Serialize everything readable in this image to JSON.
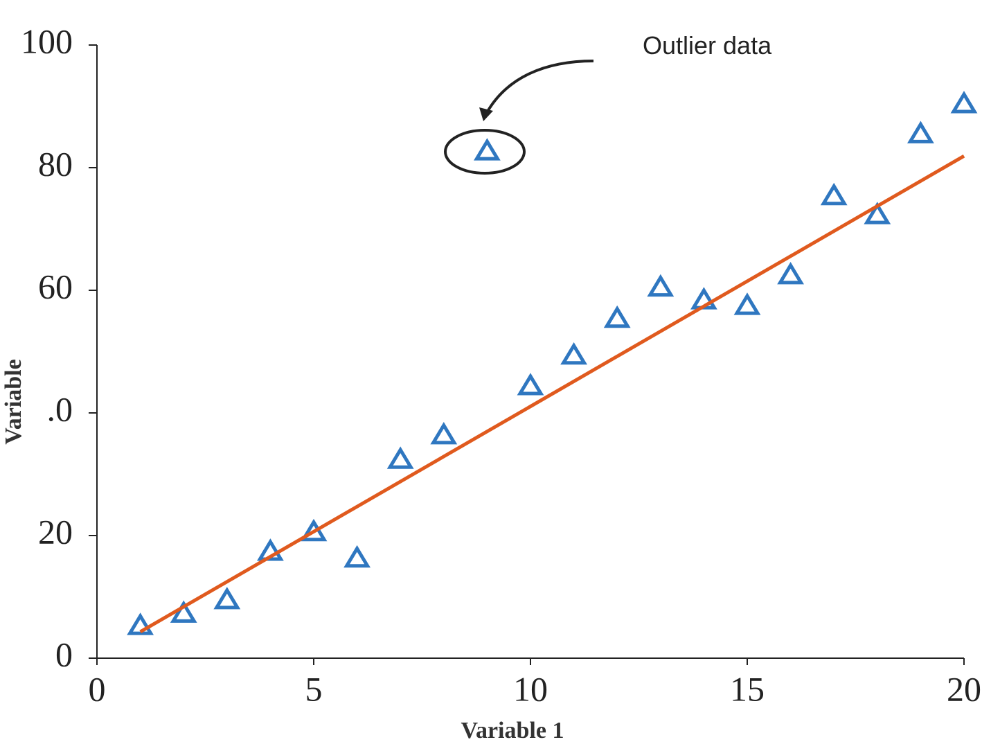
{
  "chart_data": {
    "type": "scatter",
    "xlabel": "Variable 1",
    "ylabel": "Variable",
    "annotation": "Outlier data",
    "x": [
      1,
      2,
      3,
      4,
      5,
      6,
      7,
      8,
      9,
      10,
      11,
      12,
      13,
      14,
      15,
      16,
      17,
      18,
      19,
      20
    ],
    "series": [
      {
        "color": "#2f77c0",
        "marker": "triangle",
        "values": [
          5.3,
          7.3,
          9.5,
          17.4,
          20.6,
          16.3,
          32.4,
          36.4,
          82.7,
          44.4,
          49.4,
          55.4,
          60.5,
          58.4,
          57.5,
          62.5,
          75.4,
          72.3,
          85.5,
          90.4
        ]
      },
      {
        "type": "line",
        "color": "#e05a1e",
        "x": [
          1,
          20
        ],
        "values": [
          4.3,
          81.9
        ]
      }
    ],
    "xlim": [
      0,
      20
    ],
    "xticks": [
      0,
      5,
      10,
      15,
      20
    ],
    "ylim": [
      0,
      100
    ],
    "yticks": [
      0,
      20,
      {
        "value": 40,
        "label": ".0"
      },
      60,
      80,
      100
    ],
    "grid": false
  }
}
